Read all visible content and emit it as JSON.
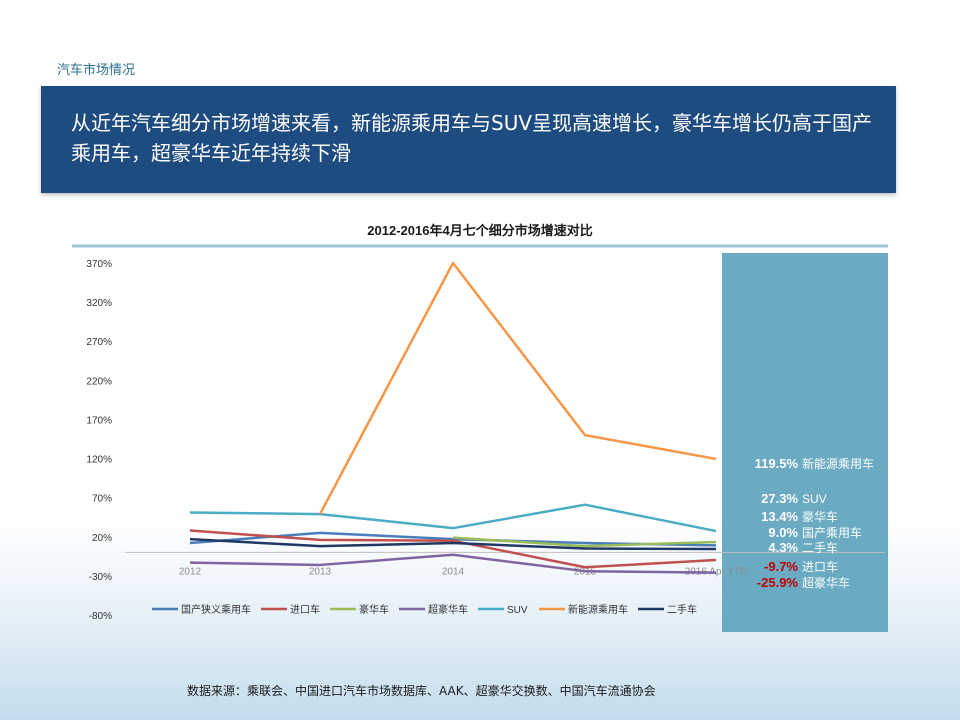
{
  "page": {
    "section_label": "汽车市场情况",
    "headline": "从近年汽车细分市场增速来看，新能源乘用车与SUV呈现高速增长，豪华车增长仍高于国产乘用车，超豪华车近年持续下滑",
    "source": "数据来源：乘联会、中国进口汽车市场数据库、AAK、超豪华交换数、中国汽车流通协会"
  },
  "chart_data": {
    "type": "line",
    "title": "2012-2016年4月七个细分市场增速对比",
    "categories": [
      "2012",
      "2013",
      "2014",
      "2015",
      "2016 Apr YTD"
    ],
    "category_labels_visible": [
      "2012",
      "2013",
      "2014",
      "2015",
      "2016 Apr YTD"
    ],
    "ylim": [
      -80,
      370
    ],
    "yticks": [
      -80,
      -30,
      20,
      70,
      120,
      170,
      220,
      270,
      320,
      370
    ],
    "ytick_labels": [
      "-80%",
      "-30%",
      "20%",
      "70%",
      "120%",
      "170%",
      "220%",
      "270%",
      "320%",
      "370%"
    ],
    "legend_position": "bottom",
    "grid": false,
    "series": [
      {
        "name": "国产狭义乘用车",
        "color": "#4a7ebb",
        "values": [
          12,
          25,
          17,
          12,
          9
        ]
      },
      {
        "name": "进口车",
        "color": "#c0504d",
        "values": [
          28,
          16,
          15,
          -19,
          -9.7
        ]
      },
      {
        "name": "豪华车",
        "color": "#9bbb59",
        "values": [
          null,
          null,
          19,
          8,
          13.4
        ]
      },
      {
        "name": "超豪华车",
        "color": "#8064a2",
        "values": [
          -13,
          -16,
          -3,
          -24,
          -25.9
        ]
      },
      {
        "name": "SUV",
        "color": "#4bacc6",
        "values": [
          51,
          49,
          31,
          61,
          27.3
        ]
      },
      {
        "name": "新能源乘用车",
        "color": "#f79646",
        "values": [
          null,
          49,
          370,
          150,
          119.5
        ]
      },
      {
        "name": "二手车",
        "color": "#1f3864",
        "values": [
          17,
          8,
          12,
          5,
          4.3
        ]
      }
    ],
    "annotations": [
      {
        "value": "119.5%",
        "label": "新能源乘用车",
        "negative": false
      },
      {
        "value": "27.3%",
        "label": "SUV",
        "negative": false
      },
      {
        "value": "13.4%",
        "label": "豪华车",
        "negative": false
      },
      {
        "value": "9.0%",
        "label": "国产乘用车",
        "negative": false
      },
      {
        "value": "4.3%",
        "label": "二手车",
        "negative": false
      },
      {
        "value": "-9.7%",
        "label": "进口车",
        "negative": true
      },
      {
        "value": "-25.9%",
        "label": "超豪华车",
        "negative": true
      }
    ],
    "colors": {
      "highlight_panel": "#6aaac2",
      "title_rule": "#9cc6d8",
      "negative_value": "#c00000"
    }
  }
}
